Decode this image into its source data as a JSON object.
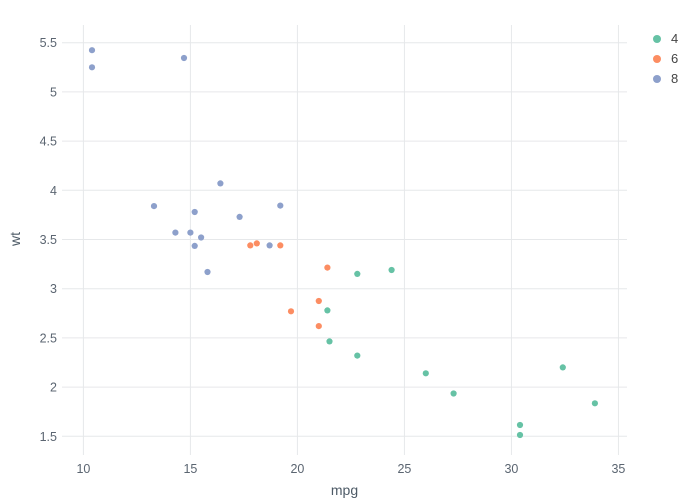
{
  "chart_data": {
    "type": "scatter",
    "title": "",
    "xlabel": "mpg",
    "ylabel": "wt",
    "x_range": [
      9.0,
      35.4
    ],
    "y_range": [
      1.31,
      5.68
    ],
    "x_ticks": [
      10,
      15,
      20,
      25,
      30,
      35
    ],
    "y_ticks": [
      1.5,
      2,
      2.5,
      3,
      3.5,
      4,
      4.5,
      5,
      5.5
    ],
    "grid": true,
    "grid_color": "#e6e8ea",
    "tick_label_color": "#5b6571",
    "marker_radius": 3.1,
    "legend_position": "top-right",
    "series": [
      {
        "name": "4",
        "color": "#66c2a5",
        "x": [
          22.8,
          24.4,
          22.8,
          32.4,
          30.4,
          33.9,
          21.5,
          27.3,
          26.0,
          30.4,
          21.4
        ],
        "y": [
          2.32,
          3.19,
          3.15,
          2.2,
          1.615,
          1.835,
          2.465,
          1.935,
          2.14,
          1.513,
          2.78
        ]
      },
      {
        "name": "6",
        "color": "#fc8d62",
        "x": [
          21.0,
          21.0,
          21.4,
          18.1,
          19.2,
          17.8,
          19.7
        ],
        "y": [
          2.62,
          2.875,
          3.215,
          3.46,
          3.44,
          3.44,
          2.77
        ]
      },
      {
        "name": "8",
        "color": "#8da0cb",
        "x": [
          18.7,
          14.3,
          16.4,
          17.3,
          15.2,
          10.4,
          10.4,
          14.7,
          15.5,
          15.2,
          13.3,
          19.2,
          15.8,
          15.0
        ],
        "y": [
          3.44,
          3.57,
          4.07,
          3.73,
          3.78,
          5.25,
          5.424,
          5.345,
          3.52,
          3.435,
          3.84,
          3.845,
          3.17,
          3.57
        ]
      }
    ]
  }
}
